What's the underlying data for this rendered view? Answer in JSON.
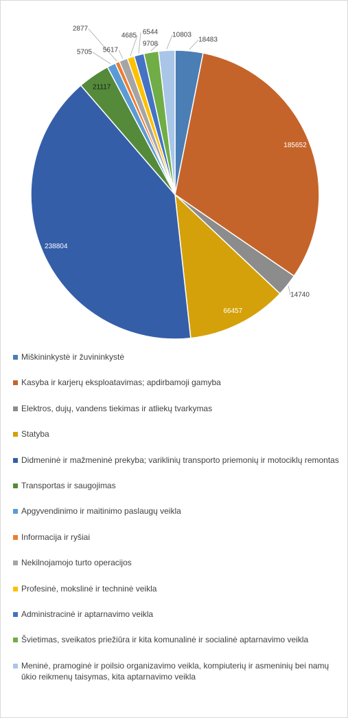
{
  "chart_data": {
    "type": "pie",
    "categories": [
      "Miškininkystė ir žuvininkystė",
      "Kasyba ir karjerų eksploatavimas; apdirbamoji gamyba",
      "Elektros, dujų, vandens tiekimas ir atliekų tvarkymas",
      "Statyba",
      "Didmeninė ir mažmeninė prekyba; variklinių transporto priemonių ir motociklų remontas",
      "Transportas ir saugojimas",
      "Apgyvendinimo ir maitinimo paslaugų veikla",
      "Informacija ir ryšiai",
      "Nekilnojamojo turto operacijos",
      "Profesinė, mokslinė ir techninė veikla",
      "Administracinė ir aptarnavimo veikla",
      "Švietimas, sveikatos priežiūra ir kita komunalinė ir socialinė aptarnavimo veikla",
      "Meninė, pramoginė ir poilsio organizavimo veikla, kompiuterių ir asmeninių bei namų ūkio reikmenų taisymas, kita aptarnavimo veikla"
    ],
    "values": [
      18483,
      185652,
      14740,
      66457,
      238804,
      21117,
      5705,
      2877,
      5617,
      4685,
      6544,
      9708,
      10803
    ],
    "colors": [
      "#4a7eb5",
      "#c5642a",
      "#8c8c8c",
      "#d4a10a",
      "#355ea9",
      "#548a3a",
      "#5b9bd5",
      "#ed7d31",
      "#a5a5a5",
      "#ffc000",
      "#4472c4",
      "#70ad47",
      "#a9c6e8"
    ]
  }
}
